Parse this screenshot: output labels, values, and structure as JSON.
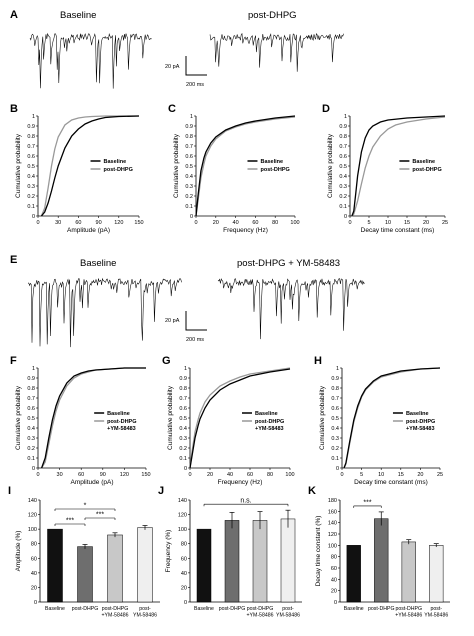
{
  "panels": {
    "A": {
      "letter": "A",
      "trace_labels": [
        "Baseline",
        "post-DHPG"
      ],
      "scale_y": "20 pA",
      "scale_x": "200 ms"
    },
    "E": {
      "letter": "E",
      "trace_labels": [
        "Baseline",
        "post-DHPG + YM-58483"
      ],
      "scale_y": "20 pA",
      "scale_x": "200 ms"
    }
  },
  "chart_data": [
    {
      "id": "B",
      "letter": "B",
      "type": "line",
      "xlabel": "Amplitude (pA)",
      "ylabel": "Cumulative probability",
      "xlim": [
        0,
        150
      ],
      "ylim": [
        0,
        1
      ],
      "xticks": [
        0,
        30,
        60,
        90,
        120,
        150
      ],
      "yticks": [
        0,
        0.1,
        0.2,
        0.3,
        0.4,
        0.5,
        0.6,
        0.7,
        0.8,
        0.9,
        1
      ],
      "legend": "center-right",
      "series": [
        {
          "name": "Baseline",
          "color": "#000000",
          "x": [
            5,
            10,
            15,
            20,
            25,
            30,
            40,
            50,
            60,
            70,
            80,
            90,
            100,
            120,
            150
          ],
          "y": [
            0,
            0.04,
            0.13,
            0.25,
            0.38,
            0.5,
            0.68,
            0.8,
            0.87,
            0.92,
            0.95,
            0.97,
            0.985,
            0.995,
            1
          ]
        },
        {
          "name": "post-DHPG",
          "color": "#999999",
          "x": [
            5,
            10,
            15,
            20,
            25,
            30,
            40,
            50,
            60,
            70,
            80,
            100,
            120,
            150
          ],
          "y": [
            0,
            0.08,
            0.28,
            0.5,
            0.67,
            0.79,
            0.91,
            0.96,
            0.98,
            0.99,
            0.995,
            1,
            1,
            1
          ]
        }
      ]
    },
    {
      "id": "C",
      "letter": "C",
      "type": "line",
      "xlabel": "Frequency (Hz)",
      "ylabel": "Cumulative probability",
      "xlim": [
        0,
        100
      ],
      "ylim": [
        0,
        1
      ],
      "xticks": [
        0,
        20,
        40,
        60,
        80,
        100
      ],
      "yticks": [
        0,
        0.1,
        0.2,
        0.3,
        0.4,
        0.5,
        0.6,
        0.7,
        0.8,
        0.9,
        1
      ],
      "legend": "center-right",
      "series": [
        {
          "name": "Baseline",
          "color": "#000000",
          "x": [
            0,
            2,
            5,
            8,
            10,
            15,
            20,
            30,
            40,
            50,
            60,
            80,
            100
          ],
          "y": [
            0,
            0.2,
            0.45,
            0.58,
            0.64,
            0.73,
            0.79,
            0.86,
            0.9,
            0.93,
            0.95,
            0.98,
            1
          ]
        },
        {
          "name": "post-DHPG",
          "color": "#999999",
          "x": [
            0,
            2,
            5,
            8,
            10,
            15,
            20,
            30,
            40,
            50,
            60,
            80,
            100
          ],
          "y": [
            0,
            0.15,
            0.38,
            0.52,
            0.6,
            0.7,
            0.77,
            0.85,
            0.89,
            0.92,
            0.94,
            0.97,
            0.99
          ]
        }
      ]
    },
    {
      "id": "D",
      "letter": "D",
      "type": "line",
      "xlabel": "Decay time constant (ms)",
      "ylabel": "Cumulative probability",
      "xlim": [
        0,
        25
      ],
      "ylim": [
        0,
        1
      ],
      "xticks": [
        0,
        5,
        10,
        15,
        20,
        25
      ],
      "yticks": [
        0,
        0.1,
        0.2,
        0.3,
        0.4,
        0.5,
        0.6,
        0.7,
        0.8,
        0.9,
        1
      ],
      "legend": "center-right",
      "series": [
        {
          "name": "Baseline",
          "color": "#000000",
          "x": [
            0.5,
            1,
            1.5,
            2,
            3,
            4,
            5,
            6,
            8,
            10,
            15,
            20,
            25
          ],
          "y": [
            0,
            0.05,
            0.22,
            0.4,
            0.64,
            0.78,
            0.86,
            0.9,
            0.94,
            0.96,
            0.98,
            0.99,
            1
          ]
        },
        {
          "name": "post-DHPG",
          "color": "#999999",
          "x": [
            0.5,
            1,
            2,
            3,
            4,
            5,
            6,
            8,
            10,
            12,
            15,
            20,
            25
          ],
          "y": [
            0,
            0.02,
            0.15,
            0.32,
            0.48,
            0.6,
            0.69,
            0.8,
            0.87,
            0.91,
            0.94,
            0.97,
            0.99
          ]
        }
      ]
    },
    {
      "id": "F",
      "letter": "F",
      "type": "line",
      "xlabel": "Amplitude (pA)",
      "ylabel": "Cumulative probability",
      "xlim": [
        0,
        150
      ],
      "ylim": [
        0,
        1
      ],
      "xticks": [
        0,
        30,
        60,
        90,
        120,
        150
      ],
      "yticks": [
        0,
        0.1,
        0.2,
        0.3,
        0.4,
        0.5,
        0.6,
        0.7,
        0.8,
        0.9,
        1
      ],
      "legend": "center-right",
      "series": [
        {
          "name": "Baseline",
          "color": "#000000",
          "x": [
            5,
            10,
            15,
            20,
            25,
            30,
            40,
            50,
            60,
            70,
            80,
            100,
            120,
            150
          ],
          "y": [
            0,
            0.1,
            0.3,
            0.48,
            0.62,
            0.72,
            0.85,
            0.92,
            0.95,
            0.97,
            0.98,
            0.99,
            1,
            1
          ]
        },
        {
          "name": "post-DHPG\n+YM-58483",
          "color": "#999999",
          "x": [
            5,
            10,
            15,
            20,
            25,
            30,
            40,
            50,
            60,
            70,
            80,
            100,
            120,
            150
          ],
          "y": [
            0,
            0.06,
            0.24,
            0.42,
            0.57,
            0.68,
            0.82,
            0.9,
            0.94,
            0.96,
            0.98,
            0.99,
            1,
            1
          ]
        }
      ]
    },
    {
      "id": "G",
      "letter": "G",
      "type": "line",
      "xlabel": "Frequency (Hz)",
      "ylabel": "Cumulative probability",
      "xlim": [
        0,
        100
      ],
      "ylim": [
        0,
        1
      ],
      "xticks": [
        0,
        20,
        40,
        60,
        80,
        100
      ],
      "yticks": [
        0,
        0.1,
        0.2,
        0.3,
        0.4,
        0.5,
        0.6,
        0.7,
        0.8,
        0.9,
        1
      ],
      "legend": "center-right",
      "series": [
        {
          "name": "Baseline",
          "color": "#000000",
          "x": [
            0,
            2,
            5,
            8,
            10,
            15,
            20,
            30,
            40,
            50,
            60,
            80,
            100
          ],
          "y": [
            0,
            0.12,
            0.3,
            0.42,
            0.49,
            0.6,
            0.68,
            0.78,
            0.84,
            0.88,
            0.92,
            0.96,
            0.99
          ]
        },
        {
          "name": "post-DHPG\n+YM-58483",
          "color": "#999999",
          "x": [
            0,
            2,
            5,
            8,
            10,
            15,
            20,
            30,
            40,
            50,
            60,
            80,
            100
          ],
          "y": [
            0,
            0.16,
            0.36,
            0.48,
            0.55,
            0.66,
            0.73,
            0.82,
            0.87,
            0.91,
            0.94,
            0.97,
            1
          ]
        }
      ]
    },
    {
      "id": "H",
      "letter": "H",
      "type": "line",
      "xlabel": "Decay time constant (ms)",
      "ylabel": "Cumulative probability",
      "xlim": [
        0,
        25
      ],
      "ylim": [
        0,
        1
      ],
      "xticks": [
        0,
        5,
        10,
        15,
        20,
        25
      ],
      "yticks": [
        0,
        0.1,
        0.2,
        0.3,
        0.4,
        0.5,
        0.6,
        0.7,
        0.8,
        0.9,
        1
      ],
      "legend": "center-right",
      "series": [
        {
          "name": "Baseline",
          "color": "#000000",
          "x": [
            0.5,
            1,
            2,
            3,
            4,
            5,
            6,
            8,
            10,
            15,
            20,
            25
          ],
          "y": [
            0,
            0.05,
            0.27,
            0.48,
            0.62,
            0.72,
            0.79,
            0.87,
            0.92,
            0.97,
            0.99,
            1
          ]
        },
        {
          "name": "post-DHPG\n+YM-58483",
          "color": "#999999",
          "x": [
            0.5,
            1,
            2,
            3,
            4,
            5,
            6,
            8,
            10,
            15,
            20,
            25
          ],
          "y": [
            0,
            0.04,
            0.25,
            0.46,
            0.6,
            0.71,
            0.78,
            0.86,
            0.91,
            0.96,
            0.99,
            1
          ]
        }
      ]
    },
    {
      "id": "I",
      "letter": "I",
      "type": "bar",
      "ylabel": "Amplitude (%)",
      "ylim": [
        0,
        140
      ],
      "yticks": [
        0,
        20,
        40,
        60,
        80,
        100,
        120,
        140
      ],
      "categories": [
        "Baseline",
        "post-DHPG",
        "post-DHPG\n+YM-58486",
        "post-\nYM-58486"
      ],
      "values": [
        100,
        76,
        92,
        102
      ],
      "errors": [
        0,
        3,
        3,
        3
      ],
      "colors": [
        "#111111",
        "#6e6e6e",
        "#c8c8c8",
        "#efefef"
      ],
      "significance": [
        {
          "from": 0,
          "to": 1,
          "label": "***"
        },
        {
          "from": 1,
          "to": 2,
          "label": "***"
        },
        {
          "from": 0,
          "to": 2,
          "label": "*"
        }
      ]
    },
    {
      "id": "J",
      "letter": "J",
      "type": "bar",
      "ylabel": "Frequency (%)",
      "ylim": [
        0,
        140
      ],
      "yticks": [
        0,
        20,
        40,
        60,
        80,
        100,
        120,
        140
      ],
      "categories": [
        "Baseline",
        "post-DHPG",
        "post-DHPG\n+YM-58486",
        "post-\nYM-58486"
      ],
      "values": [
        100,
        112,
        112,
        114
      ],
      "errors": [
        0,
        11,
        12,
        12
      ],
      "colors": [
        "#111111",
        "#6e6e6e",
        "#c8c8c8",
        "#efefef"
      ],
      "significance": [
        {
          "from": 0,
          "to": 3,
          "label": "n.s."
        }
      ]
    },
    {
      "id": "K",
      "letter": "K",
      "type": "bar",
      "ylabel": "Decay time constant (%)",
      "ylim": [
        0,
        180
      ],
      "yticks": [
        0,
        20,
        40,
        60,
        80,
        100,
        120,
        140,
        160,
        180
      ],
      "categories": [
        "Baseline",
        "post-DHPG",
        "post-DHPG\n+YM-58486",
        "post-\nYM-58486"
      ],
      "values": [
        100,
        147,
        106,
        100
      ],
      "errors": [
        0,
        12,
        4,
        3
      ],
      "colors": [
        "#111111",
        "#6e6e6e",
        "#c8c8c8",
        "#efefef"
      ],
      "significance": [
        {
          "from": 0,
          "to": 1,
          "label": "***"
        }
      ]
    }
  ]
}
